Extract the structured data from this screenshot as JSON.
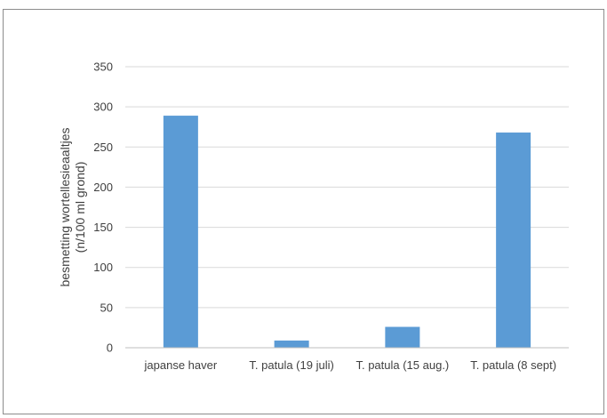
{
  "chart_data": {
    "type": "bar",
    "title": "",
    "xlabel": "",
    "ylabel_lines": [
      "besmetting wortellesieaaltjes",
      "(n/100 ml grond)"
    ],
    "categories": [
      "japanse haver",
      "T. patula (19 juli)",
      "T. patula (15 aug.)",
      "T. patula (8 sept)"
    ],
    "values": [
      289,
      9,
      26,
      268
    ],
    "ylim": [
      0,
      350
    ],
    "yticks": [
      0,
      50,
      100,
      150,
      200,
      250,
      300,
      350
    ],
    "grid": true,
    "legend": "none",
    "bar_color": "#5b9bd5",
    "grid_color": "#d9d9d9",
    "axis_color": "#bfbfbf"
  }
}
